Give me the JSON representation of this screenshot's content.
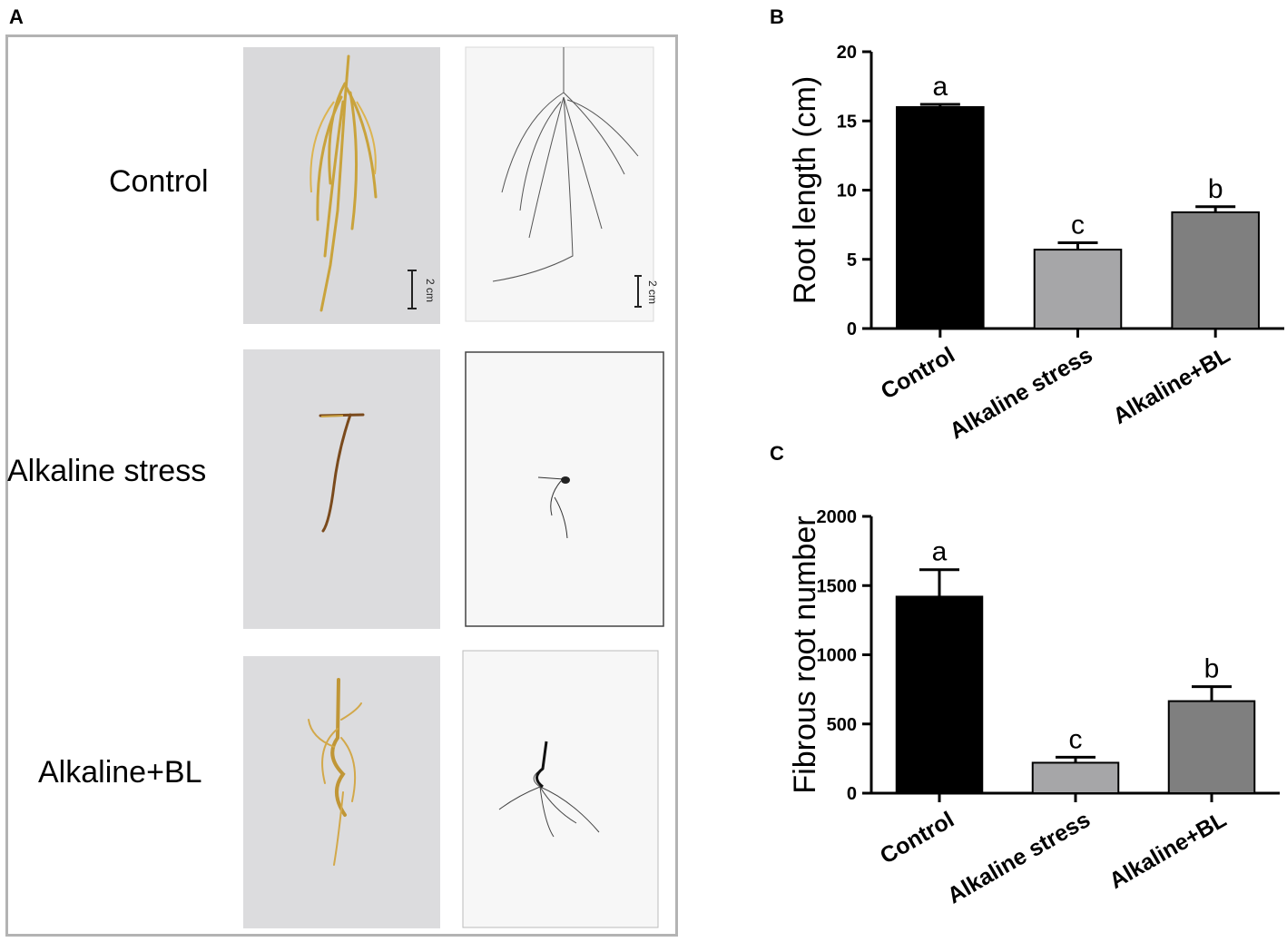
{
  "panels": {
    "a": {
      "letter": "A",
      "rows": [
        {
          "label": "Control",
          "color_photo_desc": "yellow-roots",
          "scan_photo_desc": "dense-root-scan"
        },
        {
          "label": "Alkaline stress",
          "color_photo_desc": "brown-roots",
          "scan_photo_desc": "sparse-root-scan"
        },
        {
          "label": "Alkaline+BL",
          "color_photo_desc": "yellow-roots",
          "scan_photo_desc": "medium-root-scan"
        }
      ],
      "scale_bar_label": "2 cm"
    },
    "b": {
      "letter": "B"
    },
    "c": {
      "letter": "C"
    }
  },
  "chart_data": [
    {
      "type": "bar",
      "panel": "B",
      "categories": [
        "Control",
        "Alkaline stress",
        "Alkaline+BL"
      ],
      "values": [
        16.0,
        5.7,
        8.4
      ],
      "errors": [
        0.2,
        0.5,
        0.4
      ],
      "significance": [
        "a",
        "c",
        "b"
      ],
      "bar_colors": [
        "#000000",
        "#a6a6a8",
        "#7f7f7f"
      ],
      "ylabel": "Root length (cm)",
      "xlabel": "",
      "ylim": [
        0,
        20
      ],
      "yticks": [
        "0",
        "5",
        "10",
        "15",
        "20"
      ]
    },
    {
      "type": "bar",
      "panel": "C",
      "categories": [
        "Control",
        "Alkaline stress",
        "Alkaline+BL"
      ],
      "values": [
        1420,
        220,
        665
      ],
      "errors": [
        195,
        40,
        105
      ],
      "significance": [
        "a",
        "c",
        "b"
      ],
      "bar_colors": [
        "#000000",
        "#a6a6a8",
        "#7f7f7f"
      ],
      "ylabel": "Fibrous root number",
      "xlabel": "",
      "ylim": [
        0,
        2000
      ],
      "yticks": [
        "0",
        "500",
        "1000",
        "1500",
        "2000"
      ]
    }
  ]
}
